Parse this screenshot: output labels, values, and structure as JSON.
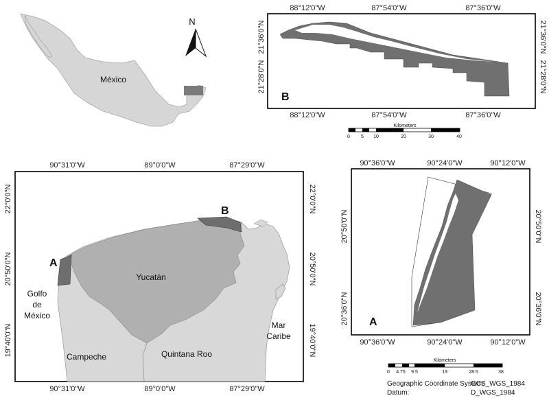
{
  "overview": {
    "country_label": "México"
  },
  "north_arrow": {
    "label": "N"
  },
  "map_b": {
    "label": "B",
    "lon_ticks": [
      "88°12'0\"W",
      "87°54'0\"W",
      "87°36'0\"W"
    ],
    "lat_ticks": [
      "21°36'0\"N",
      "21°28'0\"N"
    ],
    "scale": {
      "title": "Kilometers",
      "ticks": [
        "0",
        "5",
        "10",
        "20",
        "30",
        "40"
      ]
    }
  },
  "main_map": {
    "lon_ticks": [
      "90°31'0\"W",
      "89°0'0\"W",
      "87°29'0\"W"
    ],
    "lat_ticks": [
      "22°0'0\"N",
      "20°50'0\"N",
      "19°40'0\"N"
    ],
    "labels": {
      "a": "A",
      "b": "B",
      "yucatan": "Yucatán",
      "campeche": "Campeche",
      "quintana_roo": "Quintana Roo",
      "golfo_1": "Golfo",
      "golfo_2": "de",
      "golfo_3": "México",
      "mar_1": "Mar",
      "mar_2": "Caribe"
    }
  },
  "map_a": {
    "label": "A",
    "lon_ticks": [
      "90°36'0\"W",
      "90°24'0\"W",
      "90°12'0\"W"
    ],
    "lat_ticks": [
      "20°50'0\"N",
      "20°36'0\"N"
    ],
    "scale": {
      "title": "Kilometers",
      "ticks": [
        "0",
        "4.75",
        "9.5",
        "19",
        "28.5",
        "38"
      ]
    }
  },
  "info": {
    "gcs_label": "Geographic Coordinate System:",
    "gcs_value": "GCS_WGS_1984",
    "datum_label": "Datum:",
    "datum_value": "D_WGS_1984"
  },
  "colors": {
    "land_light": "#dedede",
    "land_mid": "#b0b0b0",
    "land_dark": "#707070",
    "frame": "#000000"
  }
}
